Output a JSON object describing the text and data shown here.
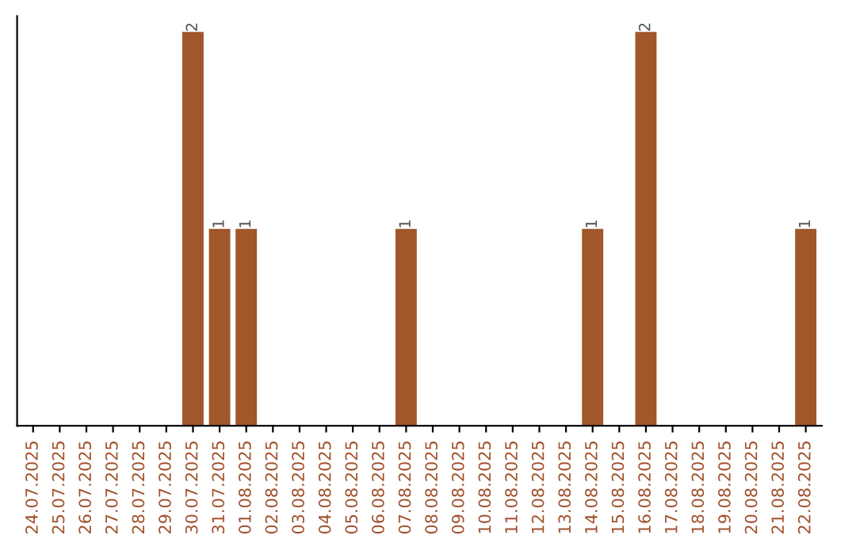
{
  "chart_data": {
    "type": "bar",
    "categories": [
      "24.07.2025",
      "25.07.2025",
      "26.07.2025",
      "27.07.2025",
      "28.07.2025",
      "29.07.2025",
      "30.07.2025",
      "31.07.2025",
      "01.08.2025",
      "02.08.2025",
      "03.08.2025",
      "04.08.2025",
      "05.08.2025",
      "06.08.2025",
      "07.08.2025",
      "08.08.2025",
      "09.08.2025",
      "10.08.2025",
      "11.08.2025",
      "12.08.2025",
      "13.08.2025",
      "14.08.2025",
      "15.08.2025",
      "16.08.2025",
      "17.08.2025",
      "18.08.2025",
      "19.08.2025",
      "20.08.2025",
      "21.08.2025",
      "22.08.2025"
    ],
    "values": [
      0,
      0,
      0,
      0,
      0,
      0,
      2,
      1,
      1,
      0,
      0,
      0,
      0,
      0,
      1,
      0,
      0,
      0,
      0,
      0,
      0,
      1,
      0,
      2,
      0,
      0,
      0,
      0,
      0,
      1
    ],
    "value_labels": [
      null,
      null,
      null,
      null,
      null,
      null,
      "2",
      "1",
      "1",
      null,
      null,
      null,
      null,
      null,
      "1",
      null,
      null,
      null,
      null,
      null,
      null,
      "1",
      null,
      "2",
      null,
      null,
      null,
      null,
      null,
      "1"
    ],
    "color": "#a0572a",
    "grid": false,
    "legend": false
  }
}
